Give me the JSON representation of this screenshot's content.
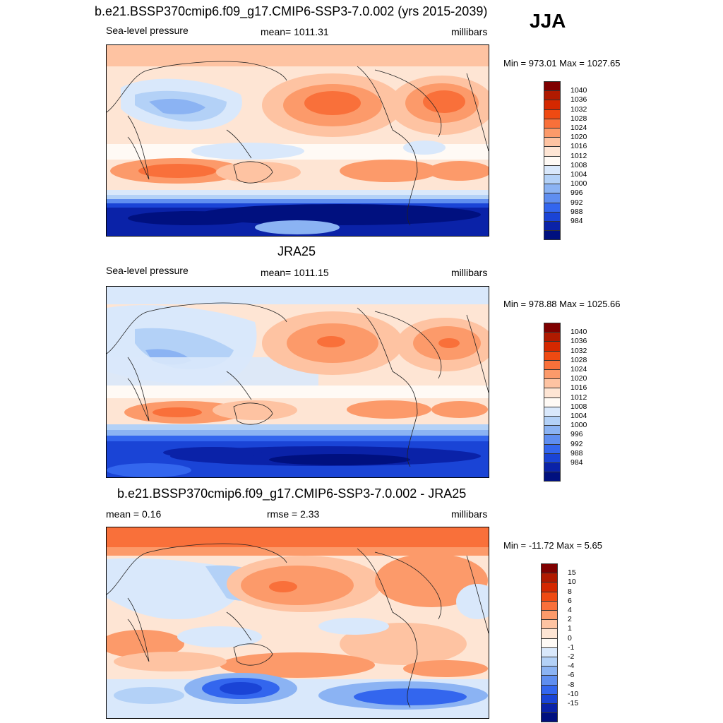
{
  "season": "JJA",
  "panels": [
    {
      "id": "model",
      "title": "b.e21.BSSP370cmip6.f09_g17.CMIP6-SSP3-7.0.002 (yrs 2015-2039)",
      "left_label": "Sea-level pressure",
      "center_label": "mean= 1011.31",
      "right_label": "millibars",
      "minmax": "Min = 973.01 Max = 1027.65"
    },
    {
      "id": "obs",
      "title": "JRA25",
      "left_label": "Sea-level pressure",
      "center_label": "mean= 1011.15",
      "right_label": "millibars",
      "minmax": "Min = 978.88 Max = 1025.66"
    },
    {
      "id": "diff",
      "title": "b.e21.BSSP370cmip6.f09_g17.CMIP6-SSP3-7.0.002 - JRA25",
      "left_label": "mean =   0.16",
      "center_label": "rmse =   2.33",
      "right_label": "millibars",
      "minmax": "Min = -11.72 Max =   5.65"
    }
  ],
  "colorbars": {
    "slp": {
      "labels": [
        "1040",
        "1036",
        "1032",
        "1028",
        "1024",
        "1020",
        "1016",
        "1012",
        "1008",
        "1004",
        "1000",
        "996",
        "992",
        "988",
        "984"
      ],
      "colors": [
        "#7f0000",
        "#b01a00",
        "#d42800",
        "#ef4a12",
        "#f9703a",
        "#fc9a6a",
        "#fec3a2",
        "#fee5d4",
        "#fffaf5",
        "#d9e8fb",
        "#b3d1f7",
        "#8bb3f3",
        "#5f8ef0",
        "#3366ee",
        "#1a44d6",
        "#0a22a8",
        "#00107f"
      ]
    },
    "diff": {
      "labels": [
        "15",
        "10",
        "8",
        "6",
        "4",
        "2",
        "1",
        "0",
        "-1",
        "-2",
        "-4",
        "-6",
        "-8",
        "-10",
        "-15"
      ],
      "colors": [
        "#7f0000",
        "#b01a00",
        "#d42800",
        "#ef4a12",
        "#f9703a",
        "#fc9a6a",
        "#fec3a2",
        "#fee5d4",
        "#fffaf5",
        "#d9e8fb",
        "#b3d1f7",
        "#8bb3f3",
        "#5f8ef0",
        "#3366ee",
        "#1a44d6",
        "#0a22a8",
        "#00107f"
      ]
    }
  }
}
